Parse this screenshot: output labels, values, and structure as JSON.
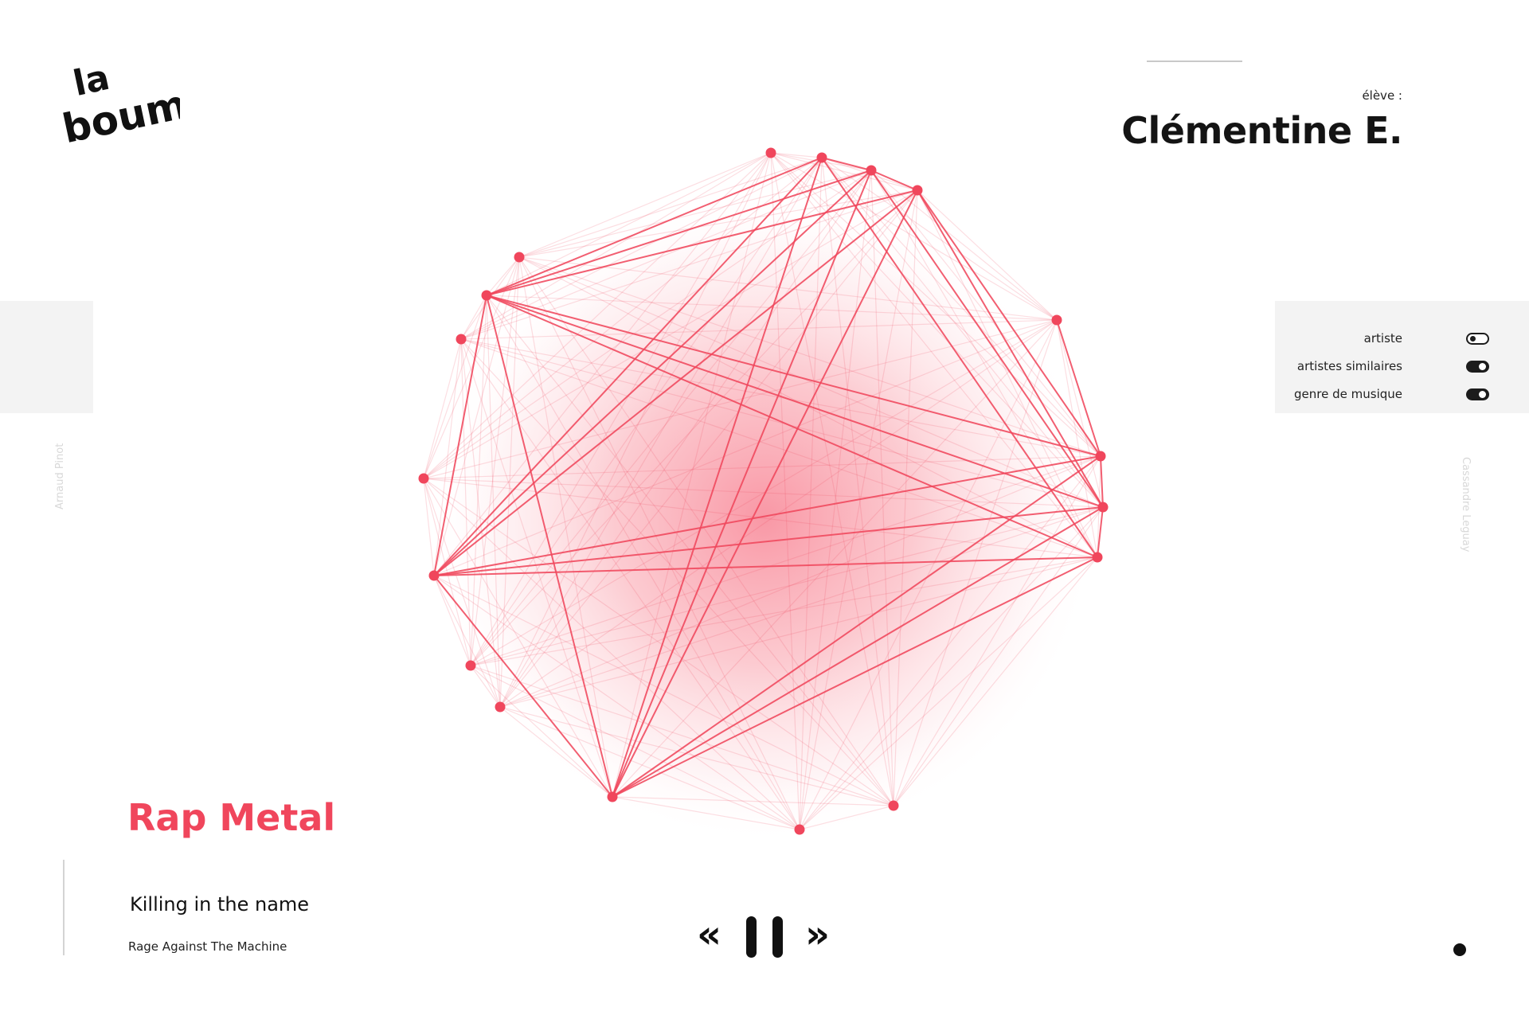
{
  "header": {
    "logo_text": "la boum",
    "student_label": "élève :",
    "student_name": "Clémentine E."
  },
  "filters": {
    "items": [
      {
        "label": "artiste",
        "state": "off"
      },
      {
        "label": "artistes similaires",
        "state": "on"
      },
      {
        "label": "genre de musique",
        "state": "on"
      }
    ]
  },
  "credits": {
    "left": "Arnaud Pinot",
    "right": "Cassandre Leguay"
  },
  "visualization": {
    "node_color": "#f0465c",
    "edge_color": "#f0465c",
    "glow_color": "#f5586e"
  },
  "now_playing": {
    "genre": "Rap Metal",
    "title": "Killing in the name",
    "artist": "Rage Against The Machine"
  },
  "player": {
    "prev_label": "«",
    "next_label": "»",
    "pause_icon": "pause-icon"
  },
  "colors": {
    "accent": "#f0465c",
    "panel_bg": "#f3f3f3",
    "text_dark": "#141414"
  }
}
